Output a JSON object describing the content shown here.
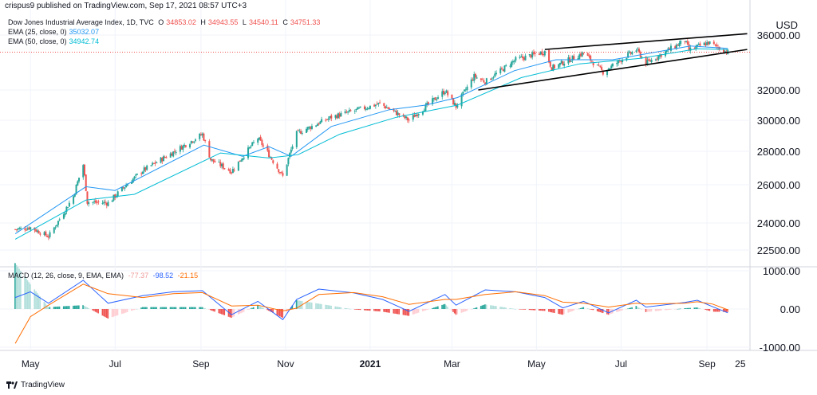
{
  "header": {
    "publisher_line": "crispus9 published on TradingView.com, Sep 17, 2021 08:57 UTC+3",
    "currency": "USD"
  },
  "legend": {
    "title": "Dow Jones Industrial Average Index, 1D, TVC",
    "o_label": "O",
    "o_value": "34853.02",
    "h_label": "H",
    "h_value": "34943.55",
    "l_label": "L",
    "l_value": "34540.11",
    "c_label": "C",
    "c_value": "34751.33",
    "ema25_label": "EMA (25, close, 0)",
    "ema25_value": "35032.07",
    "ema50_label": "EMA (50, close, 0)",
    "ema50_value": "34942.74",
    "macd_label": "MACD (12, 26, close, 9, EMA, EMA)",
    "macd_hist": "-77.37",
    "macd_line": "-98.52",
    "macd_signal": "-21.15"
  },
  "footer": {
    "brand": "TradingView"
  },
  "colors": {
    "up": "#26a69a",
    "down": "#ef5350",
    "ema25": "#2196f3",
    "ema50": "#00bcd4",
    "macd_line": "#2962ff",
    "signal_line": "#ff6d00",
    "price_line": "#ef5350",
    "trendline": "#000000"
  },
  "chart_data": {
    "type": "candlestick",
    "x_ticks": [
      "May",
      "Jul",
      "Sep",
      "Nov",
      "2021",
      "Mar",
      "May",
      "Jul",
      "Sep",
      "25"
    ],
    "y_ticks": [
      "36000.00",
      "32000.00",
      "30000.00",
      "28000.00",
      "26000.00",
      "24000.00",
      "22500.00"
    ],
    "macd_ticks": [
      "1000.00",
      "0.00",
      "-1000.00"
    ],
    "last_price": 34751.33,
    "ylim": [
      22000,
      36600
    ],
    "price_path": [
      {
        "date": "2020-04-20",
        "close": 23650
      },
      {
        "date": "2020-05-01",
        "close": 23750
      },
      {
        "date": "2020-05-14",
        "close": 23250
      },
      {
        "date": "2020-06-01",
        "close": 25400
      },
      {
        "date": "2020-06-08",
        "close": 27200
      },
      {
        "date": "2020-06-11",
        "close": 25100
      },
      {
        "date": "2020-06-26",
        "close": 25050
      },
      {
        "date": "2020-07-21",
        "close": 26850
      },
      {
        "date": "2020-08-12",
        "close": 27950
      },
      {
        "date": "2020-09-02",
        "close": 29100
      },
      {
        "date": "2020-09-08",
        "close": 27500
      },
      {
        "date": "2020-09-23",
        "close": 26800
      },
      {
        "date": "2020-10-12",
        "close": 28850
      },
      {
        "date": "2020-10-30",
        "close": 26500
      },
      {
        "date": "2020-11-09",
        "close": 29150
      },
      {
        "date": "2020-12-04",
        "close": 30200
      },
      {
        "date": "2021-01-08",
        "close": 31100
      },
      {
        "date": "2021-01-29",
        "close": 30000
      },
      {
        "date": "2021-02-24",
        "close": 31950
      },
      {
        "date": "2021-03-04",
        "close": 30900
      },
      {
        "date": "2021-03-17",
        "close": 33000
      },
      {
        "date": "2021-03-25",
        "close": 32600
      },
      {
        "date": "2021-04-16",
        "close": 34200
      },
      {
        "date": "2021-05-07",
        "close": 34800
      },
      {
        "date": "2021-05-12",
        "close": 33600
      },
      {
        "date": "2021-06-04",
        "close": 34700
      },
      {
        "date": "2021-06-18",
        "close": 33300
      },
      {
        "date": "2021-07-12",
        "close": 34950
      },
      {
        "date": "2021-07-19",
        "close": 33950
      },
      {
        "date": "2021-08-16",
        "close": 35600
      },
      {
        "date": "2021-08-19",
        "close": 34900
      },
      {
        "date": "2021-09-02",
        "close": 35450
      },
      {
        "date": "2021-09-16",
        "close": 34751
      }
    ],
    "ema25_path": [
      {
        "date": "2020-04-20",
        "value": 23400
      },
      {
        "date": "2020-06-10",
        "value": 25900
      },
      {
        "date": "2020-07-01",
        "value": 25700
      },
      {
        "date": "2020-09-03",
        "value": 28400
      },
      {
        "date": "2020-10-01",
        "value": 27700
      },
      {
        "date": "2020-10-20",
        "value": 28300
      },
      {
        "date": "2020-11-05",
        "value": 27700
      },
      {
        "date": "2020-12-04",
        "value": 29600
      },
      {
        "date": "2021-01-15",
        "value": 30700
      },
      {
        "date": "2021-02-10",
        "value": 31000
      },
      {
        "date": "2021-03-05",
        "value": 31500
      },
      {
        "date": "2021-04-15",
        "value": 33400
      },
      {
        "date": "2021-05-15",
        "value": 34200
      },
      {
        "date": "2021-06-25",
        "value": 34200
      },
      {
        "date": "2021-08-20",
        "value": 35200
      },
      {
        "date": "2021-09-16",
        "value": 35032
      }
    ],
    "ema50_path": [
      {
        "date": "2020-04-20",
        "value": 23100
      },
      {
        "date": "2020-06-10",
        "value": 25200
      },
      {
        "date": "2020-07-15",
        "value": 25500
      },
      {
        "date": "2020-09-15",
        "value": 27900
      },
      {
        "date": "2020-10-20",
        "value": 27600
      },
      {
        "date": "2020-11-10",
        "value": 27800
      },
      {
        "date": "2020-12-10",
        "value": 29100
      },
      {
        "date": "2021-01-20",
        "value": 30200
      },
      {
        "date": "2021-03-05",
        "value": 31000
      },
      {
        "date": "2021-04-20",
        "value": 32900
      },
      {
        "date": "2021-06-01",
        "value": 33900
      },
      {
        "date": "2021-07-15",
        "value": 34300
      },
      {
        "date": "2021-08-25",
        "value": 35000
      },
      {
        "date": "2021-09-16",
        "value": 34943
      }
    ],
    "trendlines": [
      {
        "x1": "2021-05-07",
        "y1": 34950,
        "x2": "2021-09-30",
        "y2": 36100
      },
      {
        "x1": "2021-03-20",
        "y1": 32000,
        "x2": "2021-09-30",
        "y2": 34950
      }
    ],
    "macd_ylim": [
      -1000,
      1000
    ],
    "macd_path": [
      {
        "date": "2020-04-20",
        "macd": 300,
        "signal": -900
      },
      {
        "date": "2020-05-01",
        "macd": 450,
        "signal": -200
      },
      {
        "date": "2020-05-14",
        "macd": 150,
        "signal": 100
      },
      {
        "date": "2020-06-08",
        "macd": 750,
        "signal": 650
      },
      {
        "date": "2020-06-26",
        "macd": 150,
        "signal": 400
      },
      {
        "date": "2020-07-21",
        "macd": 350,
        "signal": 300
      },
      {
        "date": "2020-08-12",
        "macd": 450,
        "signal": 400
      },
      {
        "date": "2020-09-02",
        "macd": 480,
        "signal": 430
      },
      {
        "date": "2020-09-23",
        "macd": -150,
        "signal": 80
      },
      {
        "date": "2020-10-12",
        "macd": 200,
        "signal": 100
      },
      {
        "date": "2020-10-30",
        "macd": -280,
        "signal": -50
      },
      {
        "date": "2020-11-09",
        "macd": 250,
        "signal": 20
      },
      {
        "date": "2020-11-25",
        "macd": 520,
        "signal": 380
      },
      {
        "date": "2020-12-20",
        "macd": 420,
        "signal": 430
      },
      {
        "date": "2021-01-10",
        "macd": 250,
        "signal": 320
      },
      {
        "date": "2021-01-29",
        "macd": -60,
        "signal": 120
      },
      {
        "date": "2021-02-24",
        "macd": 380,
        "signal": 250
      },
      {
        "date": "2021-03-04",
        "macd": 100,
        "signal": 250
      },
      {
        "date": "2021-03-25",
        "macd": 500,
        "signal": 380
      },
      {
        "date": "2021-04-16",
        "macd": 450,
        "signal": 450
      },
      {
        "date": "2021-05-07",
        "macd": 300,
        "signal": 350
      },
      {
        "date": "2021-05-20",
        "macd": 30,
        "signal": 180
      },
      {
        "date": "2021-06-04",
        "macd": 200,
        "signal": 150
      },
      {
        "date": "2021-06-22",
        "macd": -100,
        "signal": 50
      },
      {
        "date": "2021-07-12",
        "macd": 230,
        "signal": 150
      },
      {
        "date": "2021-07-19",
        "macd": 50,
        "signal": 130
      },
      {
        "date": "2021-08-16",
        "macd": 170,
        "signal": 150
      },
      {
        "date": "2021-08-25",
        "macd": 230,
        "signal": 190
      },
      {
        "date": "2021-09-05",
        "macd": 60,
        "signal": 130
      },
      {
        "date": "2021-09-16",
        "macd": -99,
        "signal": -21
      }
    ]
  }
}
